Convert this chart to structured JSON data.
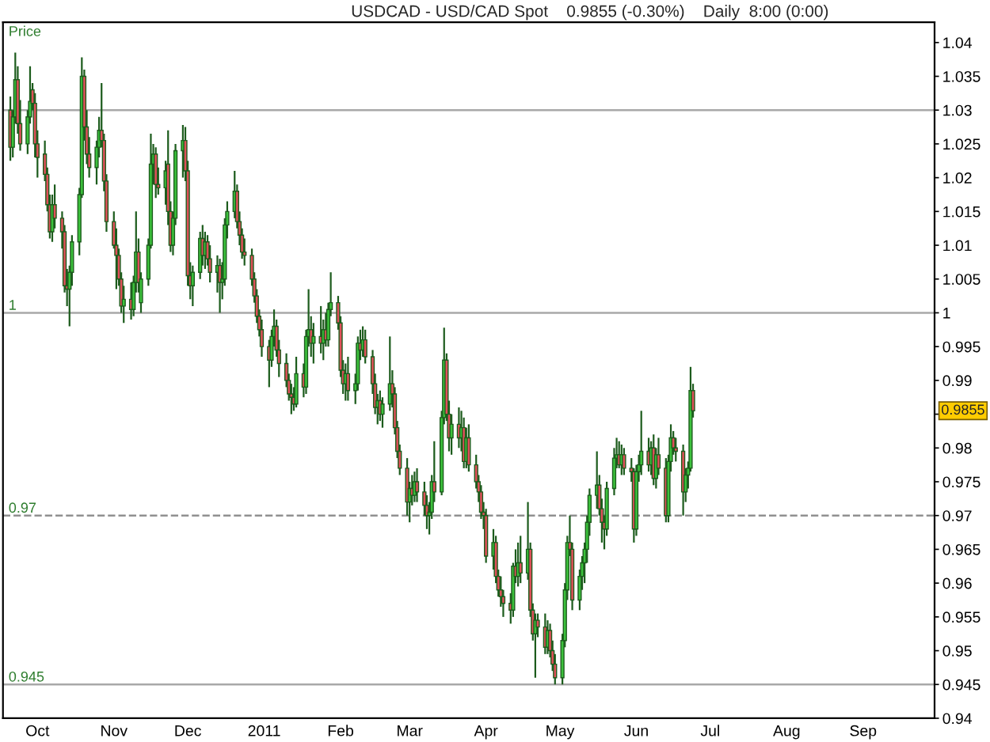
{
  "chart_data": {
    "type": "candlestick",
    "title": "USDCAD - USD/CAD Spot    0.9855 (-0.30%)    Daily  8:00 (0:00)",
    "ylabel": "Price",
    "color": "#1d5c1d",
    "x": [
      "2010-09-20",
      "2010-09-21",
      "2010-09-22",
      "2010-09-23",
      "2010-09-24",
      "2010-09-27",
      "2010-09-28",
      "2010-09-29",
      "2010-09-30",
      "2010-10-01",
      "2010-10-04",
      "2010-10-05",
      "2010-10-06",
      "2010-10-07",
      "2010-10-08",
      "2010-10-11",
      "2010-10-12",
      "2010-10-13",
      "2010-10-14",
      "2010-10-15",
      "2010-10-18",
      "2010-10-19",
      "2010-10-20",
      "2010-10-21",
      "2010-10-22",
      "2010-10-25",
      "2010-10-26",
      "2010-10-27",
      "2010-10-28",
      "2010-10-29",
      "2010-11-01",
      "2010-11-02",
      "2010-11-03",
      "2010-11-04",
      "2010-11-05",
      "2010-11-08",
      "2010-11-09",
      "2010-11-10",
      "2010-11-11",
      "2010-11-12",
      "2010-11-15",
      "2010-11-16",
      "2010-11-17",
      "2010-11-18",
      "2010-11-19",
      "2010-11-22",
      "2010-11-23",
      "2010-11-24",
      "2010-11-25",
      "2010-11-26",
      "2010-11-29",
      "2010-11-30",
      "2010-12-01",
      "2010-12-02",
      "2010-12-03",
      "2010-12-06",
      "2010-12-07",
      "2010-12-08",
      "2010-12-09",
      "2010-12-10",
      "2010-12-13",
      "2010-12-14",
      "2010-12-15",
      "2010-12-16",
      "2010-12-17",
      "2010-12-20",
      "2010-12-21",
      "2010-12-22",
      "2010-12-23",
      "2010-12-24",
      "2010-12-27",
      "2010-12-28",
      "2010-12-29",
      "2010-12-30",
      "2010-12-31",
      "2011-01-03",
      "2011-01-04",
      "2011-01-05",
      "2011-01-06",
      "2011-01-07",
      "2011-01-10",
      "2011-01-11",
      "2011-01-12",
      "2011-01-13",
      "2011-01-14",
      "2011-01-17",
      "2011-01-18",
      "2011-01-19",
      "2011-01-20",
      "2011-01-21",
      "2011-01-24",
      "2011-01-25",
      "2011-01-26",
      "2011-01-27",
      "2011-01-28",
      "2011-01-31",
      "2011-02-01",
      "2011-02-02",
      "2011-02-03",
      "2011-02-04",
      "2011-02-07",
      "2011-02-08",
      "2011-02-09",
      "2011-02-10",
      "2011-02-11",
      "2011-02-14",
      "2011-02-15",
      "2011-02-16",
      "2011-02-17",
      "2011-02-18",
      "2011-02-21",
      "2011-02-22",
      "2011-02-23",
      "2011-02-24",
      "2011-02-25",
      "2011-02-28",
      "2011-03-01",
      "2011-03-02",
      "2011-03-03",
      "2011-03-04",
      "2011-03-07",
      "2011-03-08",
      "2011-03-09",
      "2011-03-10",
      "2011-03-11",
      "2011-03-14",
      "2011-03-15",
      "2011-03-16",
      "2011-03-17",
      "2011-03-18",
      "2011-03-21",
      "2011-03-22",
      "2011-03-23",
      "2011-03-24",
      "2011-03-25",
      "2011-03-28",
      "2011-03-29",
      "2011-03-30",
      "2011-03-31",
      "2011-04-01",
      "2011-04-04",
      "2011-04-05",
      "2011-04-06",
      "2011-04-07",
      "2011-04-08",
      "2011-04-11",
      "2011-04-12",
      "2011-04-13",
      "2011-04-14",
      "2011-04-15",
      "2011-04-18",
      "2011-04-19",
      "2011-04-20",
      "2011-04-21",
      "2011-04-22",
      "2011-04-25",
      "2011-04-26",
      "2011-04-27",
      "2011-04-28",
      "2011-04-29",
      "2011-05-02",
      "2011-05-03",
      "2011-05-04",
      "2011-05-05",
      "2011-05-06",
      "2011-05-09",
      "2011-05-10",
      "2011-05-11",
      "2011-05-12",
      "2011-05-13",
      "2011-05-16",
      "2011-05-17",
      "2011-05-18",
      "2011-05-19",
      "2011-05-20",
      "2011-05-23",
      "2011-05-24",
      "2011-05-25",
      "2011-05-26",
      "2011-05-27",
      "2011-05-30",
      "2011-05-31",
      "2011-06-01",
      "2011-06-02",
      "2011-06-03",
      "2011-06-06",
      "2011-06-07",
      "2011-06-08",
      "2011-06-09",
      "2011-06-10",
      "2011-06-13",
      "2011-06-14",
      "2011-06-15",
      "2011-06-16",
      "2011-06-17",
      "2011-06-20",
      "2011-06-21",
      "2011-06-22",
      "2011-06-23",
      "2011-06-24"
    ],
    "ohlc": [
      [
        1.03,
        1.032,
        1.0225,
        1.0245
      ],
      [
        1.0245,
        1.03,
        1.023,
        1.029
      ],
      [
        1.029,
        1.0385,
        1.028,
        1.0345
      ],
      [
        1.0345,
        1.0365,
        1.0265,
        1.028
      ],
      [
        1.028,
        1.0315,
        1.024,
        1.025
      ],
      [
        1.025,
        1.03,
        1.0235,
        1.029
      ],
      [
        1.029,
        1.0365,
        1.028,
        1.0313
      ],
      [
        1.033,
        1.034,
        1.03,
        1.031
      ],
      [
        1.031,
        1.0325,
        1.023,
        1.025
      ],
      [
        1.025,
        1.027,
        1.02,
        1.023
      ],
      [
        1.0235,
        1.0255,
        1.0195,
        1.0205
      ],
      [
        1.0205,
        1.0215,
        1.015,
        1.016
      ],
      [
        1.016,
        1.0175,
        1.011,
        1.012
      ],
      [
        1.012,
        1.0175,
        1.0105,
        1.016
      ],
      [
        1.016,
        1.019,
        1.0125,
        1.014
      ],
      [
        1.014,
        1.015,
        1.0095,
        1.012
      ],
      [
        1.012,
        1.013,
        1.003,
        1.004
      ],
      [
        1.004,
        1.0065,
        1.001,
        1.0035
      ],
      [
        1.0035,
        1.007,
        0.998,
        1.006
      ],
      [
        1.006,
        1.0115,
        1.004,
        1.0105
      ],
      [
        1.0105,
        1.0185,
        1.0085,
        1.0175
      ],
      [
        1.0175,
        1.0378,
        1.017,
        1.035
      ],
      [
        1.035,
        1.036,
        1.0255,
        1.0275
      ],
      [
        1.0275,
        1.03,
        1.022,
        1.0235
      ],
      [
        1.0235,
        1.026,
        1.02,
        1.0215
      ],
      [
        1.0215,
        1.0255,
        1.019,
        1.0245
      ],
      [
        1.0245,
        1.029,
        1.023,
        1.027
      ],
      [
        1.027,
        1.034,
        1.0245,
        1.0255
      ],
      [
        1.0255,
        1.0265,
        1.018,
        1.0195
      ],
      [
        1.0195,
        1.0205,
        1.012,
        1.0135
      ],
      [
        1.0135,
        1.015,
        1.0095,
        1.01
      ],
      [
        1.01,
        1.0125,
        1.0035,
        1.0085
      ],
      [
        1.0085,
        1.0095,
        1.004,
        1.005
      ],
      [
        1.005,
        1.006,
        1.0,
        1.001
      ],
      [
        1.001,
        1.004,
        0.9985,
        1.002
      ],
      [
        1.002,
        1.0045,
        0.999,
        1.0005
      ],
      [
        1.0005,
        1.0055,
        0.9995,
        1.0045
      ],
      [
        1.0045,
        1.015,
        1.003,
        1.009
      ],
      [
        1.009,
        1.011,
        1.003,
        1.0045
      ],
      [
        1.0015,
        1.006,
        1.0,
        1.005
      ],
      [
        1.005,
        1.011,
        1.004,
        1.01
      ],
      [
        1.01,
        1.0265,
        1.0095,
        1.022
      ],
      [
        1.022,
        1.025,
        1.019,
        1.0235
      ],
      [
        1.0235,
        1.0245,
        1.017,
        1.019
      ],
      [
        1.019,
        1.0215,
        1.0175,
        1.0185
      ],
      [
        1.0185,
        1.0225,
        1.016,
        1.021
      ],
      [
        1.022,
        1.027,
        1.013,
        1.015
      ],
      [
        1.015,
        1.0165,
        1.009,
        1.01
      ],
      [
        1.01,
        1.015,
        1.0085,
        1.014
      ],
      [
        1.014,
        1.025,
        1.013,
        1.024
      ],
      [
        1.024,
        1.0278,
        1.02,
        1.0255
      ],
      [
        1.0255,
        1.0275,
        1.0195,
        1.021
      ],
      [
        1.021,
        1.0225,
        1.004,
        1.0055
      ],
      [
        1.0055,
        1.0075,
        1.002,
        1.004
      ],
      [
        1.004,
        1.007,
        1.001,
        1.006
      ],
      [
        1.006,
        1.012,
        1.005,
        1.011
      ],
      [
        1.011,
        1.013,
        1.007,
        1.0085
      ],
      [
        1.0085,
        1.012,
        1.0065,
        1.0105
      ],
      [
        1.0105,
        1.0115,
        1.007,
        1.008
      ],
      [
        1.008,
        1.01,
        1.0045,
        1.006
      ],
      [
        1.006,
        1.0085,
        1.003,
        1.007
      ],
      [
        1.007,
        1.008,
        1.0,
        1.0045
      ],
      [
        1.0045,
        1.0075,
        1.002,
        1.005
      ],
      [
        1.005,
        1.014,
        1.004,
        1.013
      ],
      [
        1.013,
        1.0165,
        1.011,
        1.015
      ],
      [
        1.015,
        1.021,
        1.014,
        1.018
      ],
      [
        1.018,
        1.019,
        1.0125,
        1.0135
      ],
      [
        1.0135,
        1.015,
        1.01,
        1.0115
      ],
      [
        1.0115,
        1.0125,
        1.008,
        1.009
      ],
      [
        1.009,
        1.011,
        1.007,
        1.0085
      ],
      [
        1.0085,
        1.0095,
        1.004,
        1.005
      ],
      [
        1.005,
        1.006,
        1.0015,
        1.0025
      ],
      [
        1.0025,
        1.0035,
        0.9985,
        0.9995
      ],
      [
        0.9995,
        1.0005,
        0.9965,
        0.9975
      ],
      [
        0.9975,
        0.999,
        0.9935,
        0.995
      ],
      [
        0.995,
        0.996,
        0.989,
        0.993
      ],
      [
        0.993,
        0.9975,
        0.992,
        0.9965
      ],
      [
        0.9965,
        1.0005,
        0.995,
        0.998
      ],
      [
        0.998,
        0.999,
        0.9935,
        0.9945
      ],
      [
        0.9945,
        0.996,
        0.9905,
        0.9925
      ],
      [
        0.9925,
        0.994,
        0.989,
        0.99
      ],
      [
        0.99,
        0.991,
        0.987,
        0.988
      ],
      [
        0.988,
        0.9895,
        0.985,
        0.9875
      ],
      [
        0.9875,
        0.989,
        0.9855,
        0.9865
      ],
      [
        0.9865,
        0.9935,
        0.986,
        0.991
      ],
      [
        0.991,
        0.9925,
        0.9875,
        0.989
      ],
      [
        0.989,
        0.9975,
        0.988,
        0.9965
      ],
      [
        0.9965,
        1.0035,
        0.995,
        0.9975
      ],
      [
        0.9975,
        0.9995,
        0.9935,
        0.9955
      ],
      [
        0.9955,
        0.9985,
        0.9925,
        0.9965
      ],
      [
        0.9965,
        1.001,
        0.994,
        0.9955
      ],
      [
        0.9955,
        0.999,
        0.993,
        0.9975
      ],
      [
        0.9975,
        1.0,
        0.995,
        0.996
      ],
      [
        0.996,
        1.0015,
        0.995,
        1.0005
      ],
      [
        1.0005,
        1.006,
        0.9995,
        1.0015
      ],
      [
        1.0015,
        1.0025,
        0.9975,
        0.9985
      ],
      [
        0.9985,
        0.9995,
        0.9905,
        0.9915
      ],
      [
        0.9915,
        0.993,
        0.988,
        0.9895
      ],
      [
        0.9895,
        0.9925,
        0.987,
        0.991
      ],
      [
        0.991,
        0.9935,
        0.987,
        0.9885
      ],
      [
        0.9885,
        0.991,
        0.9865,
        0.9895
      ],
      [
        0.9895,
        0.9965,
        0.9885,
        0.9955
      ],
      [
        0.9955,
        0.9975,
        0.993,
        0.9945
      ],
      [
        0.9945,
        0.998,
        0.9935,
        0.996
      ],
      [
        0.996,
        0.9975,
        0.9925,
        0.9935
      ],
      [
        0.9935,
        0.9945,
        0.988,
        0.9895
      ],
      [
        0.9895,
        0.991,
        0.985,
        0.986
      ],
      [
        0.986,
        0.988,
        0.9835,
        0.987
      ],
      [
        0.987,
        0.9885,
        0.984,
        0.985
      ],
      [
        0.985,
        0.9875,
        0.983,
        0.9865
      ],
      [
        0.9865,
        0.9965,
        0.9855,
        0.9895
      ],
      [
        0.9895,
        0.9915,
        0.986,
        0.988
      ],
      [
        0.988,
        0.989,
        0.982,
        0.983
      ],
      [
        0.983,
        0.984,
        0.9785,
        0.9795
      ],
      [
        0.9795,
        0.9805,
        0.976,
        0.977
      ],
      [
        0.977,
        0.9785,
        0.97,
        0.972
      ],
      [
        0.972,
        0.975,
        0.969,
        0.974
      ],
      [
        0.974,
        0.976,
        0.9715,
        0.973
      ],
      [
        0.973,
        0.9765,
        0.972,
        0.975
      ],
      [
        0.975,
        0.977,
        0.972,
        0.9735
      ],
      [
        0.9735,
        0.975,
        0.97,
        0.9715
      ],
      [
        0.9715,
        0.973,
        0.968,
        0.97
      ],
      [
        0.97,
        0.972,
        0.9672,
        0.9705
      ],
      [
        0.9705,
        0.976,
        0.9695,
        0.975
      ],
      [
        0.975,
        0.981,
        0.972,
        0.9735
      ],
      [
        0.9735,
        0.9855,
        0.973,
        0.9845
      ],
      [
        0.9845,
        0.9978,
        0.9835,
        0.993
      ],
      [
        0.993,
        0.994,
        0.984,
        0.985
      ],
      [
        0.985,
        0.987,
        0.9795,
        0.9815
      ],
      [
        0.9815,
        0.985,
        0.979,
        0.9835
      ],
      [
        0.9835,
        0.986,
        0.98,
        0.9815
      ],
      [
        0.9815,
        0.9855,
        0.9795,
        0.983
      ],
      [
        0.983,
        0.9845,
        0.977,
        0.978
      ],
      [
        0.978,
        0.983,
        0.977,
        0.9815
      ],
      [
        0.9815,
        0.9835,
        0.9765,
        0.9775
      ],
      [
        0.9775,
        0.979,
        0.974,
        0.975
      ],
      [
        0.975,
        0.976,
        0.972,
        0.9735
      ],
      [
        0.9735,
        0.9745,
        0.9695,
        0.9705
      ],
      [
        0.9705,
        0.972,
        0.968,
        0.97
      ],
      [
        0.97,
        0.971,
        0.963,
        0.964
      ],
      [
        0.964,
        0.968,
        0.962,
        0.966
      ],
      [
        0.966,
        0.967,
        0.96,
        0.961
      ],
      [
        0.961,
        0.962,
        0.958,
        0.959
      ],
      [
        0.959,
        0.961,
        0.9565,
        0.958
      ],
      [
        0.958,
        0.959,
        0.955,
        0.957
      ],
      [
        0.957,
        0.9585,
        0.954,
        0.956
      ],
      [
        0.956,
        0.963,
        0.955,
        0.9625
      ],
      [
        0.9625,
        0.965,
        0.96,
        0.961
      ],
      [
        0.961,
        0.966,
        0.9595,
        0.963
      ],
      [
        0.963,
        0.967,
        0.96,
        0.9615
      ],
      [
        0.9615,
        0.972,
        0.9605,
        0.965
      ],
      [
        0.965,
        0.966,
        0.955,
        0.956
      ],
      [
        0.956,
        0.957,
        0.9515,
        0.9525
      ],
      [
        0.9525,
        0.9555,
        0.946,
        0.9545
      ],
      [
        0.9545,
        0.9555,
        0.952,
        0.9535
      ],
      [
        0.9535,
        0.9555,
        0.9495,
        0.9505
      ],
      [
        0.9505,
        0.9545,
        0.9495,
        0.953
      ],
      [
        0.953,
        0.954,
        0.949,
        0.95
      ],
      [
        0.95,
        0.9515,
        0.947,
        0.948
      ],
      [
        0.948,
        0.9495,
        0.945,
        0.946
      ],
      [
        0.946,
        0.9525,
        0.945,
        0.9515
      ],
      [
        0.9515,
        0.96,
        0.9505,
        0.959
      ],
      [
        0.959,
        0.967,
        0.9575,
        0.966
      ],
      [
        0.966,
        0.97,
        0.964,
        0.965
      ],
      [
        0.965,
        0.966,
        0.956,
        0.9575
      ],
      [
        0.9575,
        0.962,
        0.956,
        0.961
      ],
      [
        0.961,
        0.964,
        0.959,
        0.963
      ],
      [
        0.963,
        0.966,
        0.96,
        0.965
      ],
      [
        0.965,
        0.97,
        0.963,
        0.969
      ],
      [
        0.969,
        0.974,
        0.967,
        0.973
      ],
      [
        0.973,
        0.9795,
        0.971,
        0.9745
      ],
      [
        0.9745,
        0.976,
        0.97,
        0.971
      ],
      [
        0.971,
        0.9725,
        0.966,
        0.969
      ],
      [
        0.969,
        0.97,
        0.965,
        0.968
      ],
      [
        0.968,
        0.975,
        0.967,
        0.974
      ],
      [
        0.974,
        0.98,
        0.973,
        0.9785
      ],
      [
        0.9785,
        0.9815,
        0.977,
        0.979
      ],
      [
        0.979,
        0.981,
        0.977,
        0.9775
      ],
      [
        0.9775,
        0.9805,
        0.976,
        0.979
      ],
      [
        0.979,
        0.98,
        0.976,
        0.977
      ],
      [
        0.977,
        0.9785,
        0.975,
        0.9765
      ],
      [
        0.9765,
        0.977,
        0.966,
        0.968
      ],
      [
        0.968,
        0.9775,
        0.967,
        0.9765
      ],
      [
        0.9765,
        0.979,
        0.975,
        0.9775
      ],
      [
        0.9775,
        0.9855,
        0.976,
        0.9795
      ],
      [
        0.9795,
        0.9815,
        0.9765,
        0.9775
      ],
      [
        0.9775,
        0.981,
        0.976,
        0.98
      ],
      [
        0.98,
        0.982,
        0.9745,
        0.9755
      ],
      [
        0.9755,
        0.98,
        0.974,
        0.979
      ],
      [
        0.979,
        0.9815,
        0.976,
        0.977
      ],
      [
        0.977,
        0.9785,
        0.969,
        0.97
      ],
      [
        0.97,
        0.979,
        0.969,
        0.978
      ],
      [
        0.978,
        0.9835,
        0.9765,
        0.9815
      ],
      [
        0.9815,
        0.9825,
        0.979,
        0.98
      ],
      [
        0.98,
        0.9815,
        0.978,
        0.9795
      ],
      [
        0.9795,
        0.9805,
        0.97,
        0.9735
      ],
      [
        0.9735,
        0.977,
        0.972,
        0.976
      ],
      [
        0.976,
        0.978,
        0.974,
        0.977
      ],
      [
        0.977,
        0.992,
        0.9765,
        0.9885
      ],
      [
        0.9885,
        0.9895,
        0.9845,
        0.9855
      ]
    ],
    "colors": [
      "#e0505a",
      "#3cc23c",
      "#3cc23c",
      "#e0505a",
      "#e0505a",
      "#3cc23c",
      "#3cc23c",
      "#e0505a",
      "#e0505a",
      "#e0505a",
      "#e0505a",
      "#e0505a",
      "#e0505a",
      "#3cc23c",
      "#e0505a",
      "#e0505a",
      "#e0505a",
      "#e0505a",
      "#3cc23c",
      "#3cc23c",
      "#3cc23c",
      "#3cc23c",
      "#e0505a",
      "#e0505a",
      "#e0505a",
      "#3cc23c",
      "#3cc23c",
      "#e0505a",
      "#e0505a",
      "#e0505a",
      "#e0505a",
      "#e0505a",
      "#e0505a",
      "#e0505a",
      "#3cc23c",
      "#e0505a",
      "#3cc23c",
      "#3cc23c",
      "#e0505a",
      "#3cc23c",
      "#3cc23c",
      "#3cc23c",
      "#3cc23c",
      "#e0505a",
      "#e0505a",
      "#3cc23c",
      "#e0505a",
      "#e0505a",
      "#3cc23c",
      "#3cc23c",
      "#3cc23c",
      "#e0505a",
      "#e0505a",
      "#e0505a",
      "#3cc23c",
      "#3cc23c",
      "#e0505a",
      "#3cc23c",
      "#e0505a",
      "#e0505a",
      "#3cc23c",
      "#e0505a",
      "#3cc23c",
      "#3cc23c",
      "#3cc23c",
      "#3cc23c",
      "#e0505a",
      "#e0505a",
      "#e0505a",
      "#e0505a",
      "#e0505a",
      "#e0505a",
      "#e0505a",
      "#e0505a",
      "#e0505a",
      "#e0505a",
      "#3cc23c",
      "#3cc23c",
      "#e0505a",
      "#e0505a",
      "#e0505a",
      "#e0505a",
      "#e0505a",
      "#e0505a",
      "#3cc23c",
      "#e0505a",
      "#3cc23c",
      "#3cc23c",
      "#e0505a",
      "#3cc23c",
      "#e0505a",
      "#3cc23c",
      "#e0505a",
      "#3cc23c",
      "#3cc23c",
      "#e0505a",
      "#e0505a",
      "#e0505a",
      "#3cc23c",
      "#e0505a",
      "#3cc23c",
      "#3cc23c",
      "#e0505a",
      "#3cc23c",
      "#e0505a",
      "#e0505a",
      "#e0505a",
      "#3cc23c",
      "#e0505a",
      "#3cc23c",
      "#3cc23c",
      "#e0505a",
      "#e0505a",
      "#e0505a",
      "#e0505a",
      "#e0505a",
      "#3cc23c",
      "#e0505a",
      "#3cc23c",
      "#e0505a",
      "#e0505a",
      "#e0505a",
      "#3cc23c",
      "#3cc23c",
      "#e0505a",
      "#3cc23c",
      "#3cc23c",
      "#e0505a",
      "#e0505a",
      "#3cc23c",
      "#e0505a",
      "#3cc23c",
      "#e0505a",
      "#3cc23c",
      "#e0505a",
      "#e0505a",
      "#e0505a",
      "#e0505a",
      "#e0505a",
      "#e0505a",
      "#3cc23c",
      "#e0505a",
      "#e0505a",
      "#e0505a",
      "#e0505a",
      "#e0505a",
      "#3cc23c",
      "#e0505a",
      "#3cc23c",
      "#e0505a",
      "#3cc23c",
      "#e0505a",
      "#e0505a",
      "#3cc23c",
      "#e0505a",
      "#e0505a",
      "#3cc23c",
      "#e0505a",
      "#e0505a",
      "#e0505a",
      "#3cc23c",
      "#3cc23c",
      "#3cc23c",
      "#e0505a",
      "#e0505a",
      "#3cc23c",
      "#3cc23c",
      "#3cc23c",
      "#3cc23c",
      "#3cc23c",
      "#3cc23c",
      "#e0505a",
      "#e0505a",
      "#e0505a",
      "#3cc23c",
      "#3cc23c",
      "#3cc23c",
      "#e0505a",
      "#3cc23c",
      "#e0505a",
      "#e0505a",
      "#e0505a",
      "#3cc23c",
      "#3cc23c",
      "#3cc23c",
      "#e0505a",
      "#3cc23c",
      "#e0505a",
      "#3cc23c",
      "#e0505a",
      "#e0505a",
      "#3cc23c",
      "#3cc23c",
      "#e0505a",
      "#e0505a",
      "#e0505a",
      "#3cc23c",
      "#3cc23c",
      "#3cc23c",
      "#e0505a"
    ],
    "xlim": [
      "2010-09-17",
      "2011-09-30"
    ],
    "xticks": [
      {
        "value": "2010-10-01",
        "label": "Oct"
      },
      {
        "value": "2010-11-01",
        "label": "Nov"
      },
      {
        "value": "2010-12-01",
        "label": "Dec"
      },
      {
        "value": "2011-01-01",
        "label": "2011"
      },
      {
        "value": "2011-02-01",
        "label": "Feb"
      },
      {
        "value": "2011-03-01",
        "label": "Mar"
      },
      {
        "value": "2011-04-01",
        "label": "Apr"
      },
      {
        "value": "2011-05-01",
        "label": "May"
      },
      {
        "value": "2011-06-01",
        "label": "Jun"
      },
      {
        "value": "2011-07-01",
        "label": "Jul"
      },
      {
        "value": "2011-08-01",
        "label": "Aug"
      },
      {
        "value": "2011-09-01",
        "label": "Sep"
      }
    ],
    "ylim": [
      0.94,
      1.043
    ],
    "yticks": [
      0.94,
      0.945,
      0.95,
      0.955,
      0.96,
      0.965,
      0.97,
      0.975,
      0.98,
      {
        "value": 0.985,
        "label": null
      },
      0.99,
      0.995,
      1,
      1.005,
      1.01,
      1.015,
      1.02,
      1.025,
      1.03,
      1.035,
      1.04
    ],
    "ref_lines": [
      {
        "axis": "y",
        "value": 1.03,
        "color": "#a8a8a8"
      },
      {
        "axis": "y",
        "value": 1,
        "label": "1",
        "color": "#a8a8a8"
      },
      {
        "axis": "y",
        "value": 0.97,
        "label": "0.97",
        "color": "#909090",
        "line_style": "dashed"
      },
      {
        "axis": "y",
        "value": 0.945,
        "label": "0.945",
        "color": "#a8a8a8"
      }
    ],
    "annotations": [
      {
        "text": "0.9855",
        "y": 0.9855
      }
    ]
  }
}
